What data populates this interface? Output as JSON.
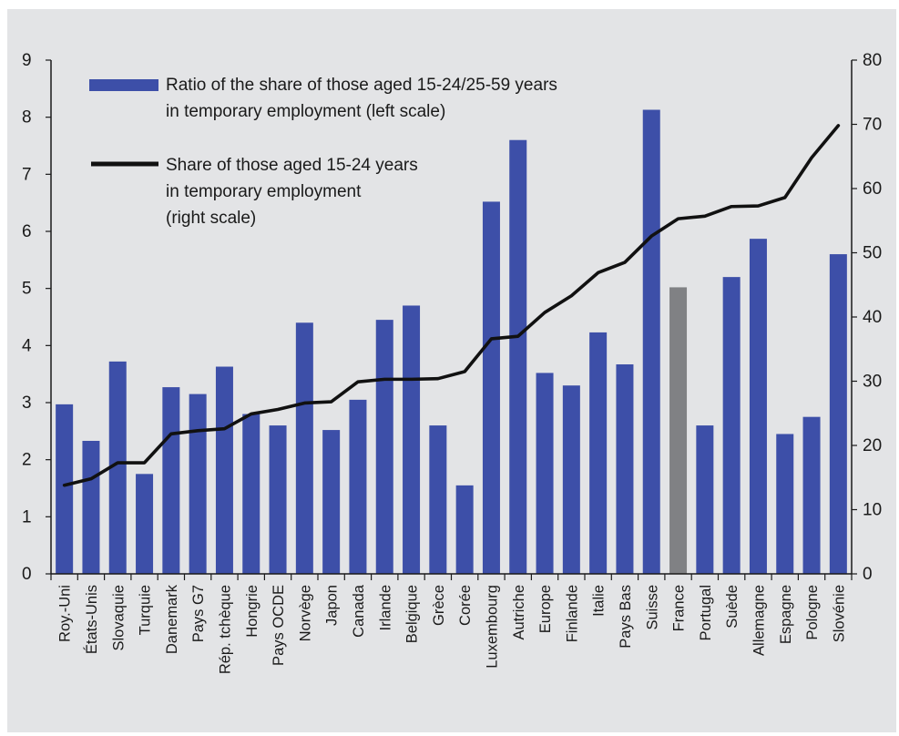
{
  "chart_data": {
    "type": "bar",
    "categories": [
      "Roy.-Uni",
      "États-Unis",
      "Slovaquie",
      "Turquie",
      "Danemark",
      "Pays G7",
      "Rép. tchèque",
      "Hongrie",
      "Pays OCDE",
      "Norvège",
      "Japon",
      "Canada",
      "Irlande",
      "Belgique",
      "Grèce",
      "Corée",
      "Luxembourg",
      "Autriche",
      "Europe",
      "Finlande",
      "Italie",
      "Pays Bas",
      "Suisse",
      "France",
      "Portugal",
      "Suède",
      "Allemagne",
      "Espagne",
      "Pologne",
      "Slovénie"
    ],
    "series": [
      {
        "name": "Ratio of the share of those aged 15-24/25-59 years in temporary employment (left scale)",
        "legend_lines": [
          "Ratio of the share of those aged 15-24/25-59 years",
          "in temporary employment (left scale)"
        ],
        "type": "bar",
        "axis": "left",
        "color": "#3d4fa8",
        "highlight": {
          "category": "France",
          "color": "#808184"
        },
        "values": [
          2.97,
          2.33,
          3.72,
          1.75,
          3.27,
          3.15,
          3.63,
          2.8,
          2.6,
          4.4,
          2.52,
          3.05,
          4.45,
          4.7,
          2.6,
          1.55,
          6.52,
          7.6,
          3.52,
          3.3,
          4.23,
          3.67,
          8.13,
          5.02,
          2.6,
          5.2,
          5.87,
          2.45,
          2.75,
          5.6
        ]
      },
      {
        "name": "Share of those aged 15-24 years in temporary employment (right scale)",
        "legend_lines": [
          "Share of those aged 15-24 years",
          "in temporary employment",
          "(right scale)"
        ],
        "type": "line",
        "axis": "right",
        "color": "#111111",
        "values": [
          13.8,
          14.8,
          17.3,
          17.3,
          21.8,
          22.3,
          22.6,
          24.9,
          25.6,
          26.6,
          26.8,
          29.9,
          30.3,
          30.3,
          30.4,
          31.5,
          36.6,
          37.0,
          40.7,
          43.3,
          46.9,
          48.5,
          52.6,
          55.3,
          55.7,
          57.2,
          57.3,
          58.6,
          64.8,
          69.8
        ]
      }
    ],
    "y_left": {
      "ylim": [
        0,
        9
      ],
      "ticks": [
        "0",
        "1",
        "2",
        "3",
        "4",
        "5",
        "6",
        "7",
        "8",
        "9"
      ]
    },
    "y_right": {
      "ylim": [
        0,
        80
      ],
      "ticks": [
        "0",
        "10",
        "20",
        "30",
        "40",
        "50",
        "60",
        "70",
        "80"
      ]
    },
    "grid": false,
    "legend": "top-left"
  }
}
